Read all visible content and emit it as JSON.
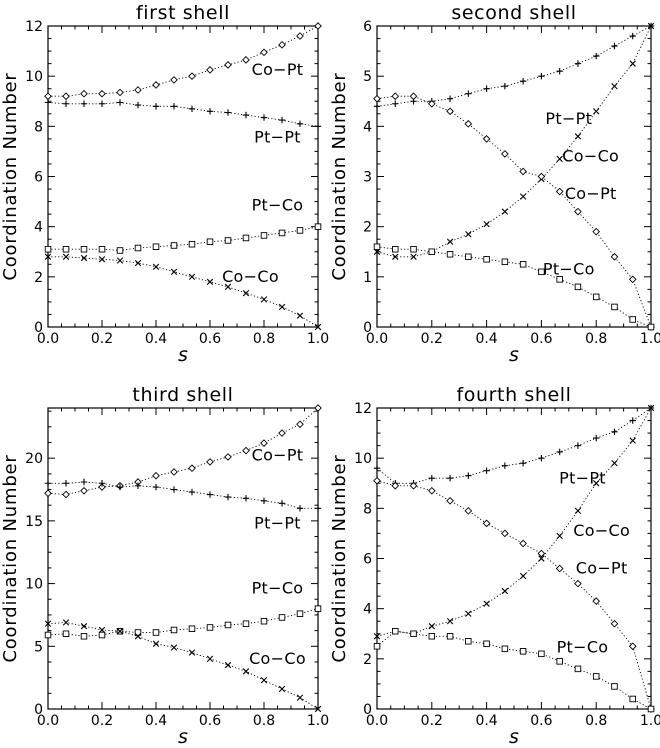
{
  "chart_data": [
    {
      "type": "line",
      "title": "first shell",
      "xlabel": "s",
      "ylabel": "Coordination Number",
      "xlim": [
        0,
        1
      ],
      "ylim": [
        0,
        12
      ],
      "xticks": [
        "0.0",
        "0.2",
        "0.4",
        "0.6",
        "0.8",
        "1.0"
      ],
      "yticks": [
        "0",
        "2",
        "4",
        "6",
        "8",
        "10",
        "12"
      ],
      "x": [
        0,
        0.0667,
        0.1333,
        0.2,
        0.2667,
        0.3333,
        0.4,
        0.4667,
        0.5333,
        0.6,
        0.6667,
        0.7333,
        0.8,
        0.8667,
        0.9333,
        1.0
      ],
      "series": [
        {
          "name": "Co−Pt",
          "marker": "diamond",
          "values": [
            9.2,
            9.2,
            9.3,
            9.3,
            9.35,
            9.45,
            9.65,
            9.85,
            10.0,
            10.25,
            10.45,
            10.65,
            10.95,
            11.25,
            11.6,
            12.0
          ]
        },
        {
          "name": "Pt−Pt",
          "marker": "plus",
          "values": [
            8.95,
            8.9,
            8.9,
            8.9,
            8.95,
            8.85,
            8.8,
            8.8,
            8.7,
            8.6,
            8.55,
            8.45,
            8.35,
            8.25,
            8.1,
            8.0
          ]
        },
        {
          "name": "Pt−Co",
          "marker": "square",
          "values": [
            3.1,
            3.1,
            3.1,
            3.1,
            3.05,
            3.15,
            3.2,
            3.25,
            3.3,
            3.4,
            3.45,
            3.55,
            3.65,
            3.75,
            3.85,
            4.0
          ]
        },
        {
          "name": "Co−Co",
          "marker": "cross",
          "values": [
            2.8,
            2.8,
            2.75,
            2.7,
            2.65,
            2.55,
            2.4,
            2.2,
            2.0,
            1.8,
            1.6,
            1.35,
            1.1,
            0.8,
            0.45,
            0.0
          ]
        }
      ],
      "labels": [
        {
          "text": "Co−Pt",
          "x": 0.85,
          "y": 10.05
        },
        {
          "text": "Pt−Pt",
          "x": 0.85,
          "y": 7.35
        },
        {
          "text": "Pt−Co",
          "x": 0.85,
          "y": 4.65
        },
        {
          "text": "Co−Co",
          "x": 0.75,
          "y": 1.8
        }
      ]
    },
    {
      "type": "line",
      "title": "second shell",
      "xlabel": "s",
      "ylabel": "Coordination Number",
      "xlim": [
        0,
        1
      ],
      "ylim": [
        0,
        6
      ],
      "xticks": [
        "0.0",
        "0.2",
        "0.4",
        "0.6",
        "0.8",
        "1.0"
      ],
      "yticks": [
        "0",
        "1",
        "2",
        "3",
        "4",
        "5",
        "6"
      ],
      "x": [
        0,
        0.0667,
        0.1333,
        0.2,
        0.2667,
        0.3333,
        0.4,
        0.4667,
        0.5333,
        0.6,
        0.6667,
        0.7333,
        0.8,
        0.8667,
        0.9333,
        1.0
      ],
      "series": [
        {
          "name": "Pt−Pt",
          "marker": "plus",
          "values": [
            4.4,
            4.45,
            4.5,
            4.5,
            4.55,
            4.65,
            4.75,
            4.8,
            4.9,
            5.0,
            5.1,
            5.25,
            5.4,
            5.6,
            5.8,
            6.0
          ]
        },
        {
          "name": "Co−Co",
          "marker": "cross",
          "values": [
            1.5,
            1.4,
            1.4,
            1.5,
            1.7,
            1.85,
            2.05,
            2.3,
            2.6,
            2.95,
            3.35,
            3.8,
            4.3,
            4.8,
            5.25,
            6.0
          ]
        },
        {
          "name": "Co−Pt",
          "marker": "diamond",
          "values": [
            4.55,
            4.6,
            4.6,
            4.45,
            4.3,
            4.05,
            3.75,
            3.45,
            3.1,
            3.0,
            2.7,
            2.3,
            1.9,
            1.4,
            0.95,
            0.0
          ]
        },
        {
          "name": "Pt−Co",
          "marker": "square",
          "values": [
            1.6,
            1.55,
            1.55,
            1.5,
            1.45,
            1.4,
            1.35,
            1.3,
            1.25,
            1.1,
            0.95,
            0.8,
            0.6,
            0.4,
            0.15,
            0.0
          ]
        }
      ],
      "labels": [
        {
          "text": "Pt−Pt",
          "x": 0.7,
          "y": 4.05
        },
        {
          "text": "Co−Co",
          "x": 0.78,
          "y": 3.3
        },
        {
          "text": "Co−Pt",
          "x": 0.78,
          "y": 2.55
        },
        {
          "text": "Pt−Co",
          "x": 0.7,
          "y": 1.05
        }
      ]
    },
    {
      "type": "line",
      "title": "third shell",
      "xlabel": "s",
      "ylabel": "Coordination Number",
      "xlim": [
        0,
        1
      ],
      "ylim": [
        0,
        24
      ],
      "xticks": [
        "0.0",
        "0.2",
        "0.4",
        "0.6",
        "0.8",
        "1.0"
      ],
      "yticks": [
        "0",
        "5",
        "10",
        "15",
        "20"
      ],
      "x": [
        0,
        0.0667,
        0.1333,
        0.2,
        0.2667,
        0.3333,
        0.4,
        0.4667,
        0.5333,
        0.6,
        0.6667,
        0.7333,
        0.8,
        0.8667,
        0.9333,
        1.0
      ],
      "series": [
        {
          "name": "Co−Pt",
          "marker": "diamond",
          "values": [
            17.2,
            17.1,
            17.4,
            17.7,
            17.8,
            18.1,
            18.6,
            18.9,
            19.2,
            19.7,
            20.1,
            20.6,
            21.2,
            22.0,
            22.7,
            24.0
          ]
        },
        {
          "name": "Pt−Pt",
          "marker": "plus",
          "values": [
            18.0,
            18.0,
            18.1,
            18.0,
            17.7,
            17.8,
            17.7,
            17.5,
            17.3,
            17.1,
            16.9,
            16.8,
            16.6,
            16.4,
            16.0,
            16.0
          ]
        },
        {
          "name": "Pt−Co",
          "marker": "square",
          "values": [
            5.9,
            6.0,
            5.8,
            5.9,
            6.2,
            6.1,
            6.1,
            6.3,
            6.4,
            6.5,
            6.7,
            6.8,
            7.0,
            7.3,
            7.6,
            8.0
          ]
        },
        {
          "name": "Co−Co",
          "marker": "cross",
          "values": [
            6.8,
            6.9,
            6.6,
            6.3,
            6.2,
            5.8,
            5.2,
            4.9,
            4.5,
            4.0,
            3.5,
            3.0,
            2.3,
            1.6,
            0.9,
            0.0
          ]
        }
      ],
      "labels": [
        {
          "text": "Co−Pt",
          "x": 0.85,
          "y": 19.8
        },
        {
          "text": "Pt−Pt",
          "x": 0.85,
          "y": 14.4
        },
        {
          "text": "Pt−Co",
          "x": 0.85,
          "y": 9.2
        },
        {
          "text": "Co−Co",
          "x": 0.85,
          "y": 3.6
        }
      ]
    },
    {
      "type": "line",
      "title": "fourth shell",
      "xlabel": "s",
      "ylabel": "Coordination Number",
      "xlim": [
        0,
        1
      ],
      "ylim": [
        0,
        12
      ],
      "xticks": [
        "0.0",
        "0.2",
        "0.4",
        "0.6",
        "0.8",
        "1.0"
      ],
      "yticks": [
        "0",
        "2",
        "4",
        "6",
        "8",
        "10",
        "12"
      ],
      "x": [
        0,
        0.0667,
        0.1333,
        0.2,
        0.2667,
        0.3333,
        0.4,
        0.4667,
        0.5333,
        0.6,
        0.6667,
        0.7333,
        0.8,
        0.8667,
        0.9333,
        1.0
      ],
      "series": [
        {
          "name": "Pt−Pt",
          "marker": "plus",
          "values": [
            9.6,
            9.0,
            9.0,
            9.2,
            9.2,
            9.3,
            9.5,
            9.7,
            9.8,
            10.0,
            10.25,
            10.5,
            10.8,
            11.05,
            11.5,
            12.0
          ]
        },
        {
          "name": "Co−Co",
          "marker": "cross",
          "values": [
            2.9,
            3.1,
            3.0,
            3.3,
            3.5,
            3.8,
            4.2,
            4.7,
            5.3,
            6.0,
            6.9,
            7.9,
            9.0,
            9.8,
            10.7,
            12.0
          ]
        },
        {
          "name": "Co−Pt",
          "marker": "diamond",
          "values": [
            9.1,
            8.9,
            8.9,
            8.7,
            8.3,
            7.9,
            7.4,
            7.0,
            6.6,
            6.2,
            5.6,
            5.0,
            4.3,
            3.4,
            2.5,
            0.0
          ]
        },
        {
          "name": "Pt−Co",
          "marker": "square",
          "values": [
            2.5,
            3.1,
            3.0,
            2.9,
            2.9,
            2.7,
            2.6,
            2.4,
            2.3,
            2.2,
            1.9,
            1.6,
            1.3,
            0.9,
            0.4,
            0.0
          ]
        }
      ],
      "labels": [
        {
          "text": "Pt−Pt",
          "x": 0.75,
          "y": 9.0
        },
        {
          "text": "Co−Co",
          "x": 0.82,
          "y": 6.9
        },
        {
          "text": "Co−Pt",
          "x": 0.82,
          "y": 5.4
        },
        {
          "text": "Pt−Co",
          "x": 0.75,
          "y": 2.25
        }
      ]
    }
  ]
}
